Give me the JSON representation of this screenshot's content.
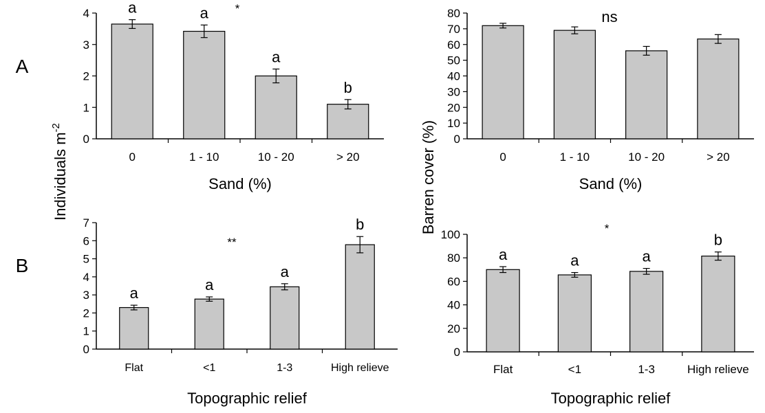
{
  "row_labels": [
    "A",
    "B"
  ],
  "shared_ylabels": {
    "left": "Individuals m",
    "left_superscript": "-2",
    "right": "Barren cover (%)"
  },
  "colors": {
    "bar_fill": "#c8c8c8",
    "stroke": "#000000",
    "background": "#ffffff"
  },
  "chart_data": [
    {
      "id": "A-left",
      "type": "bar",
      "title": "",
      "xlabel": "Sand (%)",
      "ylabel": "",
      "categories": [
        "0",
        "1 - 10",
        "10 - 20",
        "> 20"
      ],
      "values": [
        3.65,
        3.42,
        2.0,
        1.1
      ],
      "errors": [
        0.14,
        0.2,
        0.22,
        0.15
      ],
      "letters": [
        "a",
        "a",
        "a",
        "b"
      ],
      "significance": "*",
      "ylim": [
        0,
        4
      ],
      "yticks": [
        "0",
        "1",
        "2",
        "3",
        "4"
      ],
      "grid": false
    },
    {
      "id": "A-right",
      "type": "bar",
      "title": "",
      "xlabel": "Sand (%)",
      "ylabel": "",
      "categories": [
        "0",
        "1 - 10",
        "10 - 20",
        "> 20"
      ],
      "values": [
        72,
        69,
        56,
        63.5
      ],
      "errors": [
        1.5,
        2.2,
        2.8,
        2.8
      ],
      "letters": [],
      "significance": "ns",
      "ylim": [
        0,
        80
      ],
      "yticks": [
        "0",
        "10",
        "20",
        "30",
        "40",
        "50",
        "60",
        "70",
        "80"
      ],
      "grid": false
    },
    {
      "id": "B-left",
      "type": "bar",
      "title": "",
      "xlabel": "Topographic relief",
      "ylabel": "",
      "categories": [
        "Flat",
        "<1",
        "1-3",
        "High relieve"
      ],
      "values": [
        2.3,
        2.77,
        3.45,
        5.78
      ],
      "errors": [
        0.13,
        0.12,
        0.17,
        0.45
      ],
      "letters": [
        "a",
        "a",
        "a",
        "b"
      ],
      "significance": "**",
      "ylim": [
        0,
        7
      ],
      "yticks": [
        "0",
        "1",
        "2",
        "3",
        "4",
        "5",
        "6",
        "7"
      ],
      "grid": false
    },
    {
      "id": "B-right",
      "type": "bar",
      "title": "",
      "xlabel": "Topographic relief",
      "ylabel": "",
      "categories": [
        "Flat",
        "<1",
        "1-3",
        "High relieve"
      ],
      "values": [
        70,
        65.5,
        68.5,
        81.5
      ],
      "errors": [
        2.5,
        2.0,
        2.5,
        3.5
      ],
      "letters": [
        "a",
        "a",
        "a",
        "b"
      ],
      "significance": "*",
      "ylim": [
        0,
        100
      ],
      "yticks": [
        "0",
        "20",
        "40",
        "60",
        "80",
        "100"
      ],
      "grid": false
    }
  ]
}
